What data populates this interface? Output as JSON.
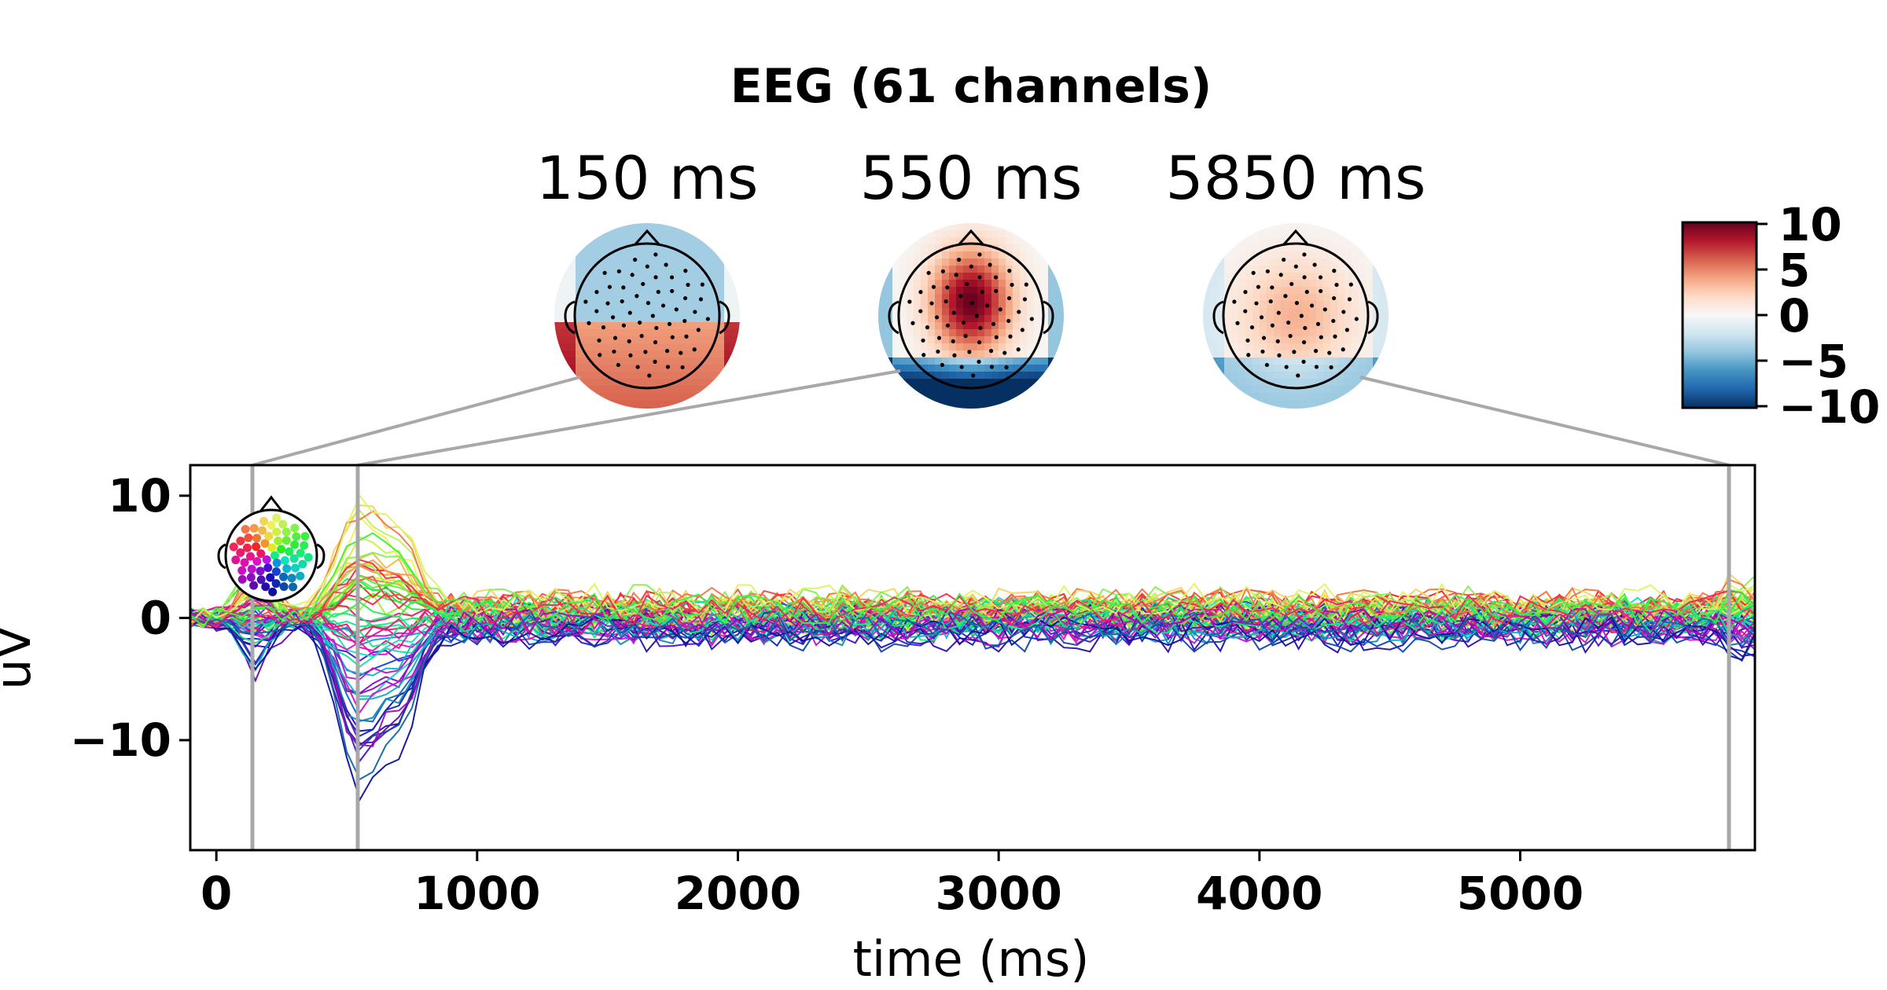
{
  "chart_data": {
    "type": "line",
    "title": "EEG (61 channels)",
    "xlabel": "time (ms)",
    "ylabel": "uV",
    "xlim": [
      -100,
      5900
    ],
    "ylim": [
      -19,
      12.5
    ],
    "xticks": [
      0,
      1000,
      2000,
      3000,
      4000,
      5000
    ],
    "xtick_labels": [
      "0",
      "1000",
      "2000",
      "3000",
      "4000",
      "5000"
    ],
    "yticks": [
      10,
      0,
      -10
    ],
    "ytick_labels": [
      "10",
      "0",
      "−10"
    ],
    "n_channels": 61,
    "sample_step_ms": 50,
    "topomap_times_ms": [
      150,
      550,
      5850
    ],
    "topomap_titles": [
      "150 ms",
      "550 ms",
      "5850 ms"
    ],
    "colorbar": {
      "range": [
        -10,
        10
      ],
      "ticks": [
        10,
        5,
        0,
        -5,
        -10
      ],
      "tick_labels": [
        "10",
        "5",
        "0",
        "−5",
        "−10"
      ],
      "colors": [
        "#053061",
        "#2166ac",
        "#4393c3",
        "#92c5de",
        "#d1e5f0",
        "#f7f7f7",
        "#fddbc7",
        "#f4a582",
        "#d6604d",
        "#b2182b",
        "#67001f"
      ]
    },
    "series_envelope": {
      "peak_positive": {
        "t": 150,
        "max": 4.5,
        "min": -5
      },
      "peak_n": {
        "t": 550,
        "max": 11,
        "min": -18
      },
      "late_noise_amplitude": 2.5
    }
  }
}
